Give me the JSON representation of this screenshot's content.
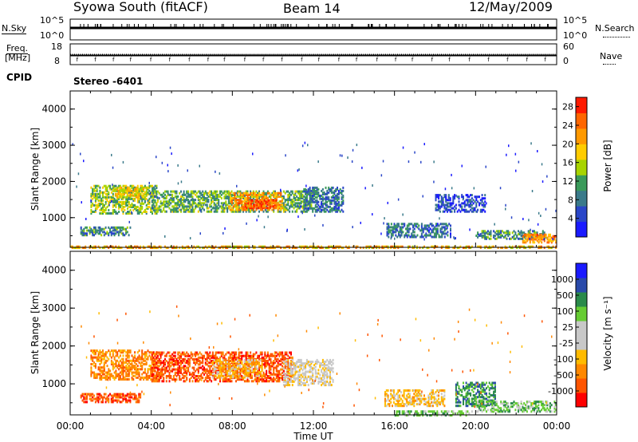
{
  "header": {
    "station": "Syowa South (fitACF)",
    "beam": "Beam 14",
    "date": "12/May/2009"
  },
  "top_panels": {
    "nsky_label": "N.Sky",
    "nsky_ticks": [
      "10^5",
      "10^0"
    ],
    "nsearch_label": "N.Search",
    "nsearch_ticks": [
      "10^5",
      "10^0"
    ],
    "freq_label_line1": "Freq.",
    "freq_label_line2": "[MHz]",
    "freq_ticks": [
      "18",
      "8"
    ],
    "nave_label": "Nave",
    "nave_ticks": [
      "60",
      "0"
    ],
    "cpid_label": "CPID",
    "cpid_value": "Stereo -6401"
  },
  "colors": {
    "power_scale": [
      "#1a1aff",
      "#2a46c8",
      "#3a7a8a",
      "#3a9a5a",
      "#a8d400",
      "#ffcc00",
      "#ff9900",
      "#ff6600",
      "#ff1a00"
    ],
    "velocity_scale": [
      "#ff0000",
      "#ff5500",
      "#ff8800",
      "#ffbb00",
      "#c8c8c8",
      "#c8c8c8",
      "#66cc33",
      "#2a8a4a",
      "#2a4aaa",
      "#1a1aff"
    ]
  },
  "chart_data": [
    {
      "type": "heatmap",
      "quantity": "power",
      "xlabel": "",
      "ylabel": "Slant Range [km]",
      "xlim": [
        0,
        24
      ],
      "ylim": [
        180,
        4500
      ],
      "y_ticks": [
        1000,
        2000,
        3000,
        4000
      ],
      "y_tick_labels": [
        "1000",
        "2000",
        "3000",
        "4000"
      ],
      "colorbar": {
        "label": "Power [dB]",
        "ticks": [
          4,
          8,
          12,
          16,
          20,
          24,
          28
        ],
        "tick_labels": [
          "4",
          "8",
          "12",
          "16",
          "20",
          "24",
          "28"
        ],
        "range": [
          0,
          30
        ]
      },
      "regions": [
        {
          "t0": 1.0,
          "t1": 4.3,
          "r0": 1150,
          "r1": 1950,
          "level": 14
        },
        {
          "t0": 2.2,
          "t1": 3.8,
          "r0": 1600,
          "r1": 1900,
          "level": 18
        },
        {
          "t0": 4.0,
          "t1": 12.0,
          "r0": 1200,
          "r1": 1800,
          "level": 12
        },
        {
          "t0": 7.8,
          "t1": 10.5,
          "r0": 1250,
          "r1": 1750,
          "level": 22
        },
        {
          "t0": 8.6,
          "t1": 10.2,
          "r0": 1300,
          "r1": 1550,
          "level": 26
        },
        {
          "t0": 11.5,
          "t1": 13.5,
          "r0": 1200,
          "r1": 1900,
          "level": 8
        },
        {
          "t0": 0.5,
          "t1": 3.0,
          "r0": 550,
          "r1": 800,
          "level": 10
        },
        {
          "t0": 15.6,
          "t1": 18.8,
          "r0": 500,
          "r1": 900,
          "level": 8
        },
        {
          "t0": 18.0,
          "t1": 20.5,
          "r0": 1200,
          "r1": 1700,
          "level": 5
        },
        {
          "t0": 20.0,
          "t1": 23.5,
          "r0": 450,
          "r1": 700,
          "level": 10
        },
        {
          "t0": 22.3,
          "t1": 24.0,
          "r0": 350,
          "r1": 600,
          "level": 22
        },
        {
          "t0": 0.0,
          "t1": 24.0,
          "r0": 200,
          "r1": 260,
          "level": 20
        }
      ]
    },
    {
      "type": "heatmap",
      "quantity": "velocity",
      "xlabel": "Time UT",
      "ylabel": "Slant Range [km]",
      "xlim": [
        0,
        24
      ],
      "ylim": [
        180,
        4500
      ],
      "x_ticks": [
        0,
        4,
        8,
        12,
        16,
        20,
        24
      ],
      "x_tick_labels": [
        "00:00",
        "04:00",
        "08:00",
        "12:00",
        "16:00",
        "20:00",
        "00:00"
      ],
      "y_ticks": [
        1000,
        2000,
        3000,
        4000
      ],
      "y_tick_labels": [
        "1000",
        "2000",
        "3000",
        "4000"
      ],
      "colorbar": {
        "label": "Velocity [m s⁻¹]",
        "tick_labels": [
          "-1000",
          "-500",
          "-100",
          "-25",
          "25",
          "100",
          "500",
          "1000"
        ]
      },
      "regions": [
        {
          "t0": 1.0,
          "t1": 4.3,
          "r0": 1150,
          "r1": 1950,
          "vclass": 2
        },
        {
          "t0": 4.0,
          "t1": 11.0,
          "r0": 1100,
          "r1": 1900,
          "vclass": 1
        },
        {
          "t0": 7.0,
          "t1": 9.5,
          "r0": 1200,
          "r1": 1700,
          "vclass": 3
        },
        {
          "t0": 10.5,
          "t1": 13.0,
          "r0": 1000,
          "r1": 1700,
          "vclass": 4
        },
        {
          "t0": 0.5,
          "t1": 3.5,
          "r0": 550,
          "r1": 800,
          "vclass": 1
        },
        {
          "t0": 15.5,
          "t1": 18.5,
          "r0": 450,
          "r1": 900,
          "vclass": 3
        },
        {
          "t0": 19.0,
          "t1": 21.0,
          "r0": 450,
          "r1": 1100,
          "vclass": 7
        },
        {
          "t0": 20.0,
          "t1": 24.0,
          "r0": 300,
          "r1": 600,
          "vclass": 6
        },
        {
          "t0": 16.0,
          "t1": 20.0,
          "r0": 200,
          "r1": 350,
          "vclass": 6
        }
      ]
    }
  ]
}
